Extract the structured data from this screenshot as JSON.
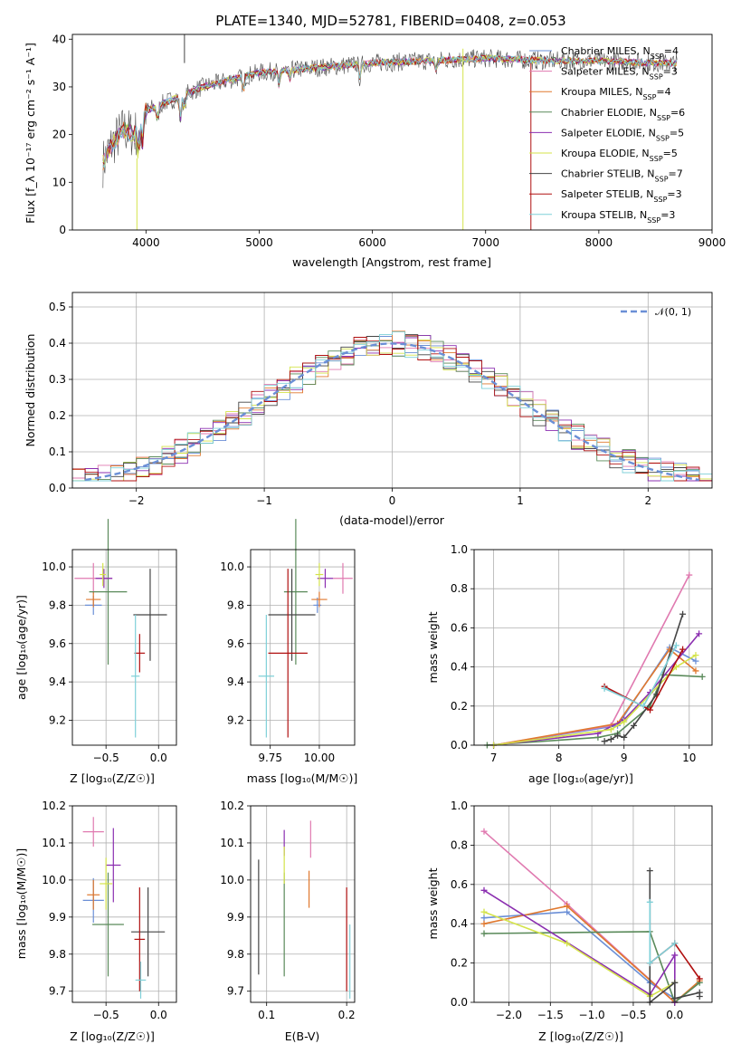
{
  "title": "PLATE=1340, MJD=52781, FIBERID=0408, z=0.053",
  "colors": [
    "#6b8fd6",
    "#e07ab0",
    "#e0782e",
    "#5a8a5a",
    "#8b2fb0",
    "#d4e34a",
    "#444444",
    "#b01010",
    "#7fd0d8"
  ],
  "spectrum": {
    "xlabel": "wavelength [Angstrom, rest frame]",
    "ylabel": "Flux [f_λ 10⁻¹⁷ erg cm⁻² s⁻¹ A⁻¹]",
    "xlim": [
      3350,
      9000
    ],
    "ylim": [
      0,
      41
    ],
    "xticks": [
      "4000",
      "5000",
      "6000",
      "7000",
      "8000",
      "9000"
    ],
    "yticks": [
      "0",
      "10",
      "20",
      "30",
      "40"
    ],
    "legend": [
      {
        "label": "Chabrier MILES, N_SSP=4",
        "color": "#6b8fd6"
      },
      {
        "label": "Salpeter MILES, N_SSP=3",
        "color": "#e07ab0"
      },
      {
        "label": "Kroupa MILES, N_SSP=4",
        "color": "#e0782e"
      },
      {
        "label": "Chabrier ELODIE, N_SSP=6",
        "color": "#5a8a5a"
      },
      {
        "label": "Salpeter ELODIE, N_SSP=5",
        "color": "#8b2fb0"
      },
      {
        "label": "Kroupa ELODIE, N_SSP=5",
        "color": "#d4e34a"
      },
      {
        "label": "Chabrier STELIB, N_SSP=7",
        "color": "#444444"
      },
      {
        "label": "Salpeter STELIB, N_SSP=3",
        "color": "#b01010"
      },
      {
        "label": "Kroupa STELIB, N_SSP=3",
        "color": "#7fd0d8"
      }
    ]
  },
  "hist": {
    "xlabel": "(data-model)/error",
    "ylabel": "Normed distribution",
    "xlim": [
      -2.5,
      2.5
    ],
    "ylim": [
      0,
      0.54
    ],
    "xticks": [
      "−2",
      "−1",
      "0",
      "1",
      "2"
    ],
    "yticks": [
      "0.0",
      "0.1",
      "0.2",
      "0.3",
      "0.4",
      "0.5"
    ],
    "legend_label": "𝒩(0, 1)"
  },
  "panels": {
    "age_vs_Z": {
      "xlabel": "Z [log₁₀(Z/Z☉)]",
      "ylabel": "age  [log₁₀(age/yr)]",
      "xticks": [
        "−0.5",
        "0.0"
      ],
      "yticks": [
        "9.2",
        "9.4",
        "9.6",
        "9.8",
        "10.0"
      ]
    },
    "age_vs_mass": {
      "xlabel": "mass [log₁₀(M/M☉)]",
      "xticks": [
        "9.75",
        "10.00"
      ],
      "yticks": [
        "9.2",
        "9.4",
        "9.6",
        "9.8",
        "10.0"
      ]
    },
    "weight_vs_age": {
      "xlabel": "age  [log₁₀(age/yr)]",
      "ylabel": "mass weight",
      "xticks": [
        "7",
        "8",
        "9",
        "10"
      ],
      "yticks": [
        "0.0",
        "0.2",
        "0.4",
        "0.6",
        "0.8",
        "1.0"
      ]
    },
    "mass_vs_Z": {
      "xlabel": "Z [log₁₀(Z/Z☉)]",
      "ylabel": "mass [log₁₀(M/M☉)]",
      "xticks": [
        "−0.5",
        "0.0"
      ],
      "yticks": [
        "9.7",
        "9.8",
        "9.9",
        "10.0",
        "10.1",
        "10.2"
      ]
    },
    "mass_vs_ebv": {
      "xlabel": "E(B-V)",
      "xticks": [
        "0.1",
        "0.2"
      ],
      "yticks": [
        "9.7",
        "9.8",
        "9.9",
        "10.0",
        "10.1",
        "10.2"
      ]
    },
    "weight_vs_Z": {
      "xlabel": "Z [log₁₀(Z/Z☉)]",
      "ylabel": "mass weight",
      "xticks": [
        "−2.0",
        "−1.5",
        "−1.0",
        "−0.5",
        "0.0"
      ],
      "yticks": [
        "0.0",
        "0.2",
        "0.4",
        "0.6",
        "0.8",
        "1.0"
      ]
    }
  },
  "chart_data": [
    {
      "type": "line",
      "title": "PLATE=1340, MJD=52781, FIBERID=0408, z=0.053",
      "xlabel": "wavelength [Angstrom, rest frame]",
      "ylabel": "Flux [f_λ 10⁻¹⁷ erg cm⁻² s⁻¹ A⁻¹]",
      "xlim": [
        3350,
        9000
      ],
      "ylim": [
        0,
        41
      ],
      "grid": false,
      "legend": "right",
      "x": [
        3620,
        3700,
        3800,
        3900,
        4000,
        4200,
        4500,
        5000,
        5500,
        6000,
        6500,
        7000,
        7500,
        8000,
        8500,
        8700
      ],
      "series": [
        {
          "name": "data",
          "values": [
            14,
            18,
            21,
            20,
            25,
            27,
            30,
            33,
            34,
            35,
            35.5,
            36,
            35.5,
            35.5,
            35,
            35
          ]
        }
      ]
    },
    {
      "type": "bar",
      "xlabel": "(data-model)/error",
      "ylabel": "Normed distribution",
      "xlim": [
        -2.5,
        2.5
      ],
      "ylim": [
        0,
        0.54
      ],
      "grid": true,
      "legend": "top-right",
      "series": [
        {
          "name": "𝒩(0, 1)",
          "x": [
            -2.4,
            -2,
            -1.5,
            -1,
            -0.5,
            0,
            0.5,
            1,
            1.5,
            2,
            2.4
          ],
          "values": [
            0.022,
            0.054,
            0.13,
            0.242,
            0.352,
            0.399,
            0.352,
            0.242,
            0.13,
            0.054,
            0.022
          ]
        }
      ]
    },
    {
      "type": "scatter",
      "xlabel": "Z [log₁₀(Z/Z☉)]",
      "ylabel": "age  [log₁₀(age/yr)]",
      "xlim": [
        -0.82,
        0.17
      ],
      "ylim": [
        9.07,
        10.09
      ],
      "grid": true,
      "points": [
        {
          "x": -0.62,
          "y": 9.8,
          "xerr": 0.08,
          "yerr": 0.05,
          "color": "#6b8fd6"
        },
        {
          "x": -0.62,
          "y": 9.94,
          "xerr": 0.18,
          "yerr": 0.08,
          "color": "#e07ab0"
        },
        {
          "x": -0.62,
          "y": 9.83,
          "xerr": 0.07,
          "yerr": 0.04,
          "color": "#e0782e"
        },
        {
          "x": -0.48,
          "y": 9.87,
          "xerr": 0.18,
          "yerr": 0.38,
          "color": "#5a8a5a"
        },
        {
          "x": -0.52,
          "y": 9.94,
          "xerr": 0.08,
          "yerr": 0.05,
          "color": "#8b2fb0"
        },
        {
          "x": -0.53,
          "y": 9.96,
          "xerr": 0.03,
          "yerr": 0.06,
          "color": "#d4e34a"
        },
        {
          "x": -0.08,
          "y": 9.75,
          "xerr": 0.16,
          "yerr": 0.24,
          "color": "#444444"
        },
        {
          "x": -0.18,
          "y": 9.55,
          "xerr": 0.05,
          "yerr": 0.1,
          "color": "#b01010"
        },
        {
          "x": -0.22,
          "y": 9.43,
          "xerr": 0.04,
          "yerr": 0.32,
          "color": "#7fd0d8"
        }
      ]
    },
    {
      "type": "scatter",
      "xlabel": "mass [log₁₀(M/M☉)]",
      "xlim": [
        9.65,
        10.18
      ],
      "ylim": [
        9.07,
        10.09
      ],
      "grid": true,
      "points": [
        {
          "x": 9.99,
          "y": 9.8,
          "xerr": 0.02,
          "yerr": 0.04,
          "color": "#6b8fd6"
        },
        {
          "x": 10.12,
          "y": 9.94,
          "xerr": 0.05,
          "yerr": 0.08,
          "color": "#e07ab0"
        },
        {
          "x": 10.0,
          "y": 9.83,
          "xerr": 0.04,
          "yerr": 0.04,
          "color": "#e0782e"
        },
        {
          "x": 9.88,
          "y": 9.87,
          "xerr": 0.06,
          "yerr": 0.38,
          "color": "#5a8a5a"
        },
        {
          "x": 10.03,
          "y": 9.94,
          "xerr": 0.04,
          "yerr": 0.05,
          "color": "#8b2fb0"
        },
        {
          "x": 10.0,
          "y": 9.96,
          "xerr": 0.02,
          "yerr": 0.06,
          "color": "#d4e34a"
        },
        {
          "x": 9.86,
          "y": 9.75,
          "xerr": 0.12,
          "yerr": 0.24,
          "color": "#444444"
        },
        {
          "x": 9.84,
          "y": 9.55,
          "xerr": 0.1,
          "yerr": 0.44,
          "color": "#b01010"
        },
        {
          "x": 9.73,
          "y": 9.43,
          "xerr": 0.04,
          "yerr": 0.32,
          "color": "#7fd0d8"
        }
      ]
    },
    {
      "type": "line",
      "xlabel": "age  [log₁₀(age/yr)]",
      "ylabel": "mass weight",
      "xlim": [
        6.7,
        10.35
      ],
      "ylim": [
        0,
        1
      ],
      "grid": true,
      "series": [
        {
          "name": "Chabrier MILES, N_SSP=4",
          "x": [
            7.0,
            8.9,
            9.7,
            10.1
          ],
          "values": [
            0.0,
            0.1,
            0.5,
            0.43
          ]
        },
        {
          "name": "Salpeter MILES, N_SSP=3",
          "x": [
            7.0,
            8.8,
            10.0
          ],
          "values": [
            0.0,
            0.1,
            0.87
          ]
        },
        {
          "name": "Kroupa MILES, N_SSP=4",
          "x": [
            7.0,
            8.9,
            9.7,
            10.1
          ],
          "values": [
            0.0,
            0.11,
            0.49,
            0.38
          ]
        },
        {
          "name": "Chabrier ELODIE, N_SSP=6",
          "x": [
            6.9,
            8.6,
            8.9,
            9.4,
            9.6,
            10.2
          ],
          "values": [
            0.0,
            0.04,
            0.06,
            0.2,
            0.36,
            0.35
          ]
        },
        {
          "name": "Salpeter ELODIE, N_SSP=5",
          "x": [
            7.0,
            8.6,
            9.0,
            9.4,
            10.15
          ],
          "values": [
            0.0,
            0.06,
            0.13,
            0.27,
            0.57
          ]
        },
        {
          "name": "Kroupa ELODIE, N_SSP=5",
          "x": [
            7.0,
            8.8,
            9.0,
            9.8,
            10.1
          ],
          "values": [
            0.0,
            0.08,
            0.12,
            0.4,
            0.46
          ]
        },
        {
          "name": "Chabrier STELIB, N_SSP=7",
          "x": [
            8.7,
            8.8,
            8.9,
            9.0,
            9.15,
            9.5,
            9.9
          ],
          "values": [
            0.02,
            0.03,
            0.05,
            0.04,
            0.1,
            0.26,
            0.67
          ]
        },
        {
          "name": "Salpeter STELIB, N_SSP=3",
          "x": [
            8.7,
            9.4,
            9.9
          ],
          "values": [
            0.3,
            0.18,
            0.49
          ]
        },
        {
          "name": "Kroupa STELIB, N_SSP=3",
          "x": [
            8.7,
            9.3,
            9.8
          ],
          "values": [
            0.29,
            0.2,
            0.51
          ]
        }
      ]
    },
    {
      "type": "scatter",
      "xlabel": "Z [log₁₀(Z/Z☉)]",
      "ylabel": "mass [log₁₀(M/M☉)]",
      "xlim": [
        -0.82,
        0.17
      ],
      "ylim": [
        9.67,
        10.2
      ],
      "grid": true,
      "points": [
        {
          "x": -0.62,
          "y": 9.945,
          "xerr": 0.1,
          "yerr": 0.06,
          "color": "#6b8fd6"
        },
        {
          "x": -0.62,
          "y": 10.13,
          "xerr": 0.1,
          "yerr": 0.04,
          "color": "#e07ab0"
        },
        {
          "x": -0.62,
          "y": 9.96,
          "xerr": 0.06,
          "yerr": 0.04,
          "color": "#e0782e"
        },
        {
          "x": -0.48,
          "y": 9.88,
          "xerr": 0.15,
          "yerr": 0.14,
          "color": "#5a8a5a"
        },
        {
          "x": -0.43,
          "y": 10.04,
          "xerr": 0.07,
          "yerr": 0.1,
          "color": "#8b2fb0"
        },
        {
          "x": -0.5,
          "y": 9.99,
          "xerr": 0.06,
          "yerr": 0.07,
          "color": "#d4e34a"
        },
        {
          "x": -0.1,
          "y": 9.86,
          "xerr": 0.16,
          "yerr": 0.12,
          "color": "#444444"
        },
        {
          "x": -0.18,
          "y": 9.84,
          "xerr": 0.05,
          "yerr": 0.14,
          "color": "#b01010"
        },
        {
          "x": -0.17,
          "y": 9.73,
          "xerr": 0.05,
          "yerr": 0.05,
          "color": "#7fd0d8"
        }
      ]
    },
    {
      "type": "scatter",
      "xlabel": "E(B-V)",
      "xlim": [
        0.08,
        0.21
      ],
      "ylim": [
        9.67,
        10.2
      ],
      "grid": true,
      "points": [
        {
          "x": 0.09,
          "y": 9.9,
          "yerr": 0.155,
          "color": "#444444"
        },
        {
          "x": 0.122,
          "y": 9.88,
          "yerr": 0.14,
          "color": "#5a8a5a"
        },
        {
          "x": 0.122,
          "y": 10.1,
          "yerr": 0.035,
          "color": "#8b2fb0"
        },
        {
          "x": 0.122,
          "y": 10.04,
          "yerr": 0.05,
          "color": "#d4e34a"
        },
        {
          "x": 0.155,
          "y": 10.11,
          "yerr": 0.05,
          "color": "#e07ab0"
        },
        {
          "x": 0.153,
          "y": 9.975,
          "yerr": 0.05,
          "color": "#e0782e"
        },
        {
          "x": 0.2,
          "y": 9.84,
          "yerr": 0.14,
          "color": "#b01010"
        },
        {
          "x": 0.204,
          "y": 9.78,
          "yerr": 0.1,
          "color": "#7fd0d8"
        }
      ]
    },
    {
      "type": "line",
      "xlabel": "Z [log₁₀(Z/Z☉)]",
      "ylabel": "mass weight",
      "xlim": [
        -2.42,
        0.45
      ],
      "ylim": [
        0,
        1
      ],
      "grid": true,
      "series": [
        {
          "name": "Chabrier MILES, N_SSP=4",
          "x": [
            -2.3,
            -1.3,
            -0.3,
            0.0
          ],
          "values": [
            0.43,
            0.46,
            0.1,
            0.02
          ]
        },
        {
          "name": "Salpeter MILES, N_SSP=3",
          "x": [
            -2.3,
            -1.3,
            0.0
          ],
          "values": [
            0.87,
            0.5,
            0.0
          ]
        },
        {
          "name": "Kroupa MILES, N_SSP=4",
          "x": [
            -2.3,
            -1.3,
            0.0,
            0.3
          ],
          "values": [
            0.4,
            0.49,
            0.0,
            0.11
          ]
        },
        {
          "name": "Chabrier ELODIE, N_SSP=6",
          "x": [
            -2.3,
            -0.3,
            0.0,
            0.3
          ],
          "values": [
            0.35,
            0.36,
            0.0,
            0.1
          ]
        },
        {
          "name": "Salpeter ELODIE, N_SSP=5",
          "x": [
            -2.3,
            -0.3,
            0.0,
            0.0
          ],
          "values": [
            0.57,
            0.04,
            0.24,
            0.0
          ]
        },
        {
          "name": "Kroupa ELODIE, N_SSP=5",
          "x": [
            -2.3,
            -1.3,
            -0.3,
            0.0
          ],
          "values": [
            0.46,
            0.3,
            0.03,
            0.1
          ]
        },
        {
          "name": "Chabrier STELIB, N_SSP=7",
          "x": [
            -0.3,
            -0.3,
            0.0,
            0.0,
            0.3,
            0.3
          ],
          "values": [
            0.67,
            0.0,
            0.1,
            0.02,
            0.05,
            0.03
          ]
        },
        {
          "name": "Salpeter STELIB, N_SSP=3",
          "x": [
            -0.3,
            0.0,
            0.3
          ],
          "values": [
            0.2,
            0.3,
            0.12
          ]
        },
        {
          "name": "Kroupa STELIB, N_SSP=3",
          "x": [
            -0.3,
            -0.3,
            0.0
          ],
          "values": [
            0.51,
            0.2,
            0.3
          ]
        }
      ]
    }
  ]
}
